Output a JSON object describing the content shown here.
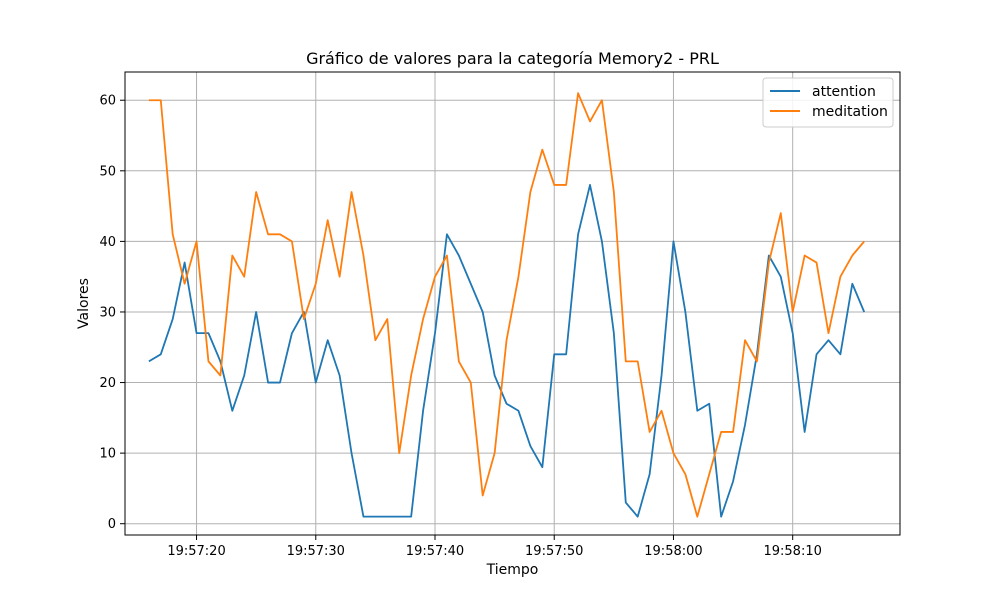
{
  "chart_data": {
    "type": "line",
    "title": "Gráfico de valores para la categoría Memory2 - PRL",
    "xlabel": "Tiempo",
    "ylabel": "Valores",
    "x_start": "19:57:16",
    "x_tick_labels": [
      "19:57:20",
      "19:57:30",
      "19:57:40",
      "19:57:50",
      "19:58:00",
      "19:58:10"
    ],
    "xlim": [
      "19:57:14",
      "19:58:19"
    ],
    "y_ticks": [
      0,
      10,
      20,
      30,
      40,
      50,
      60
    ],
    "ylim": [
      -1.6,
      64
    ],
    "grid": true,
    "legend_position": "top-right",
    "x": [
      "19:57:16",
      "19:57:17",
      "19:57:18",
      "19:57:19",
      "19:57:20",
      "19:57:21",
      "19:57:22",
      "19:57:23",
      "19:57:24",
      "19:57:25",
      "19:57:26",
      "19:57:27",
      "19:57:28",
      "19:57:29",
      "19:57:30",
      "19:57:31",
      "19:57:32",
      "19:57:33",
      "19:57:34",
      "19:57:35",
      "19:57:36",
      "19:57:37",
      "19:57:38",
      "19:57:39",
      "19:57:40",
      "19:57:41",
      "19:57:42",
      "19:57:43",
      "19:57:44",
      "19:57:45",
      "19:57:46",
      "19:57:47",
      "19:57:48",
      "19:57:49",
      "19:57:50",
      "19:57:51",
      "19:57:52",
      "19:57:53",
      "19:57:54",
      "19:57:55",
      "19:57:56",
      "19:57:57",
      "19:57:58",
      "19:57:59",
      "19:58:00",
      "19:58:01",
      "19:58:02",
      "19:58:03",
      "19:58:04",
      "19:58:05",
      "19:58:06",
      "19:58:07",
      "19:58:08",
      "19:58:09",
      "19:58:10",
      "19:58:11",
      "19:58:12",
      "19:58:13",
      "19:58:14",
      "19:58:15",
      "19:58:16"
    ],
    "series": [
      {
        "name": "attention",
        "color": "#1f77b4",
        "values": [
          23,
          24,
          29,
          37,
          27,
          27,
          23,
          16,
          21,
          30,
          20,
          20,
          27,
          30,
          20,
          26,
          21,
          10,
          1,
          1,
          1,
          1,
          1,
          16,
          27,
          41,
          38,
          34,
          30,
          21,
          17,
          16,
          11,
          8,
          24,
          24,
          41,
          48,
          40,
          27,
          3,
          1,
          7,
          21,
          40,
          30,
          16,
          17,
          1,
          6,
          14,
          24,
          38,
          35,
          27,
          13,
          24,
          26,
          24,
          34,
          30
        ]
      },
      {
        "name": "meditation",
        "color": "#ff7f0e",
        "values": [
          60,
          60,
          41,
          34,
          40,
          23,
          21,
          38,
          35,
          47,
          41,
          41,
          40,
          29,
          34,
          43,
          35,
          47,
          38,
          26,
          29,
          10,
          21,
          29,
          35,
          38,
          23,
          20,
          4,
          10,
          26,
          35,
          47,
          53,
          48,
          48,
          61,
          57,
          60,
          47,
          23,
          23,
          13,
          16,
          10,
          7,
          1,
          7,
          13,
          13,
          26,
          23,
          37,
          44,
          30,
          38,
          37,
          27,
          35,
          38,
          40
        ]
      }
    ]
  }
}
